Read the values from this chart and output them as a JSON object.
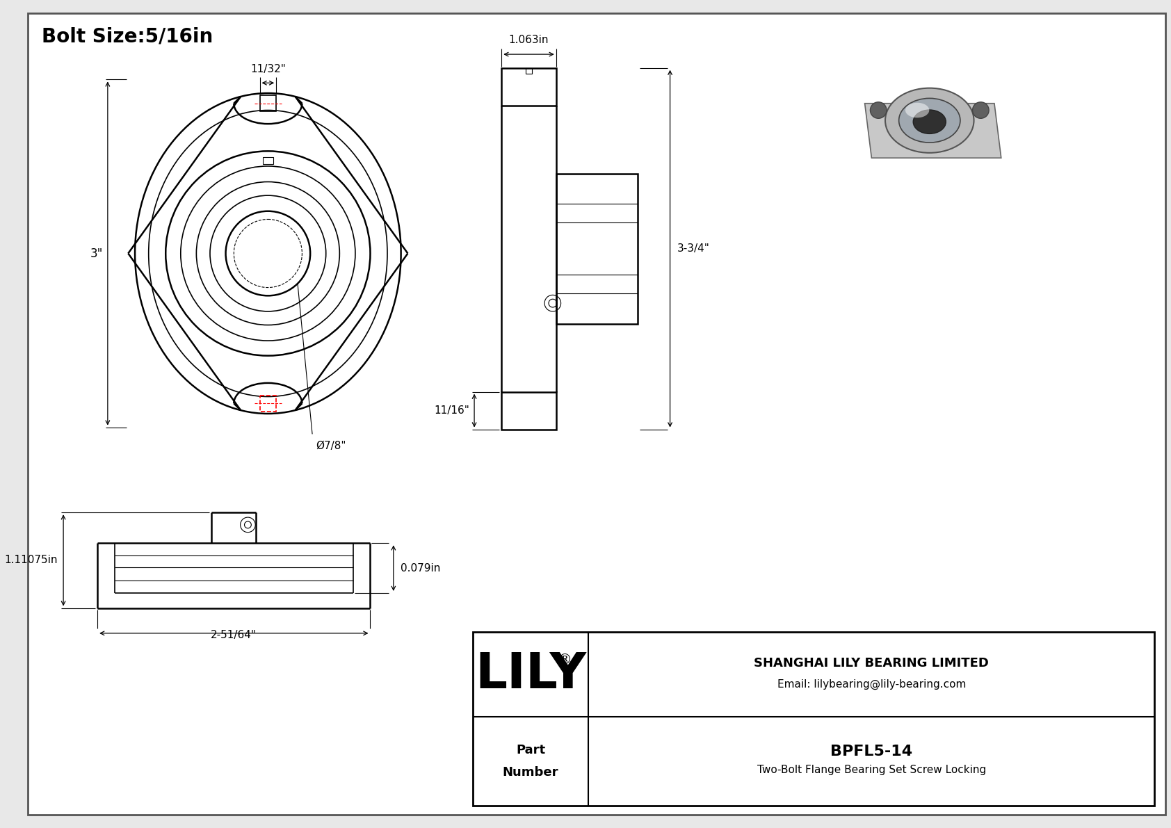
{
  "title": "Bolt Size:5/16in",
  "title_fontsize": 20,
  "bg_color": "#e8e8e8",
  "drawing_bg": "#ffffff",
  "company_name": "SHANGHAI LILY BEARING LIMITED",
  "company_email": "Email: lilybearing@lily-bearing.com",
  "lily_logo": "LILY",
  "part_label": "Part\nNumber",
  "part_number": "BPFL5-14",
  "part_desc": "Two-Bolt Flange Bearing Set Screw Locking",
  "dim_11_32": "11/32\"",
  "dim_3": "3\"",
  "dim_dia_7_8": "Ø7/8\"",
  "dim_1_063": "1.063in",
  "dim_3_3_4": "3-3/4\"",
  "dim_11_16": "11/16\"",
  "dim_0_079": "0.079in",
  "dim_1_11075": "1.11075in",
  "dim_2_51_64": "2-51/64\""
}
